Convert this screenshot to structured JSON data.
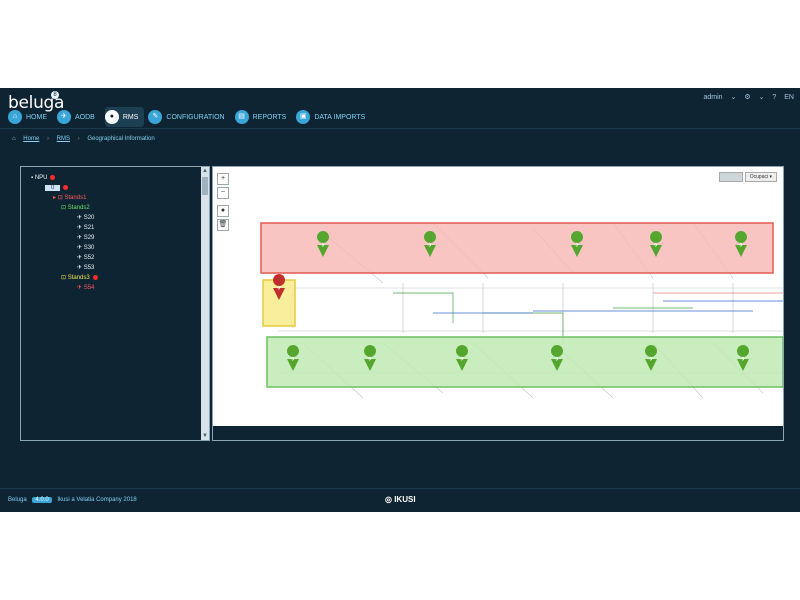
{
  "app": {
    "name": "beluga",
    "badge": "8"
  },
  "header": {
    "user": "admin",
    "lang": "EN"
  },
  "nav": [
    {
      "label": "HOME",
      "icon": "home-icon"
    },
    {
      "label": "AODB",
      "icon": "plane-icon"
    },
    {
      "label": "RMS",
      "icon": "map-pin-icon"
    },
    {
      "label": "CONFIGURATION",
      "icon": "wrench-icon"
    },
    {
      "label": "REPORTS",
      "icon": "report-icon"
    },
    {
      "label": "DATA IMPORTS",
      "icon": "import-icon"
    }
  ],
  "breadcrumb": {
    "home": "Home",
    "rms": "RMS",
    "current": "Geographical Information"
  },
  "tree": {
    "root": "NPU",
    "selected": "0",
    "stands1": "Stands1",
    "stands2": "Stands2",
    "stands2_items": [
      "S20",
      "S21",
      "S29",
      "S30",
      "S52",
      "S53"
    ],
    "stands3": "Stands3",
    "stands3_items": [
      "S54"
    ]
  },
  "map": {
    "layer_buttons": [
      "",
      "Ocupaci"
    ],
    "zones": [
      {
        "name": "Stands1",
        "status": "red",
        "color": "#f08a8a"
      },
      {
        "name": "Stands2",
        "status": "green",
        "color": "#9ee08e"
      },
      {
        "name": "Stands3",
        "status": "yellow",
        "color": "#f3e27a"
      }
    ]
  },
  "footer": {
    "app": "Beluga",
    "version": "4.0.0",
    "company": "Ikusi a Velatia Company 2018",
    "brand": "IKUSI"
  }
}
